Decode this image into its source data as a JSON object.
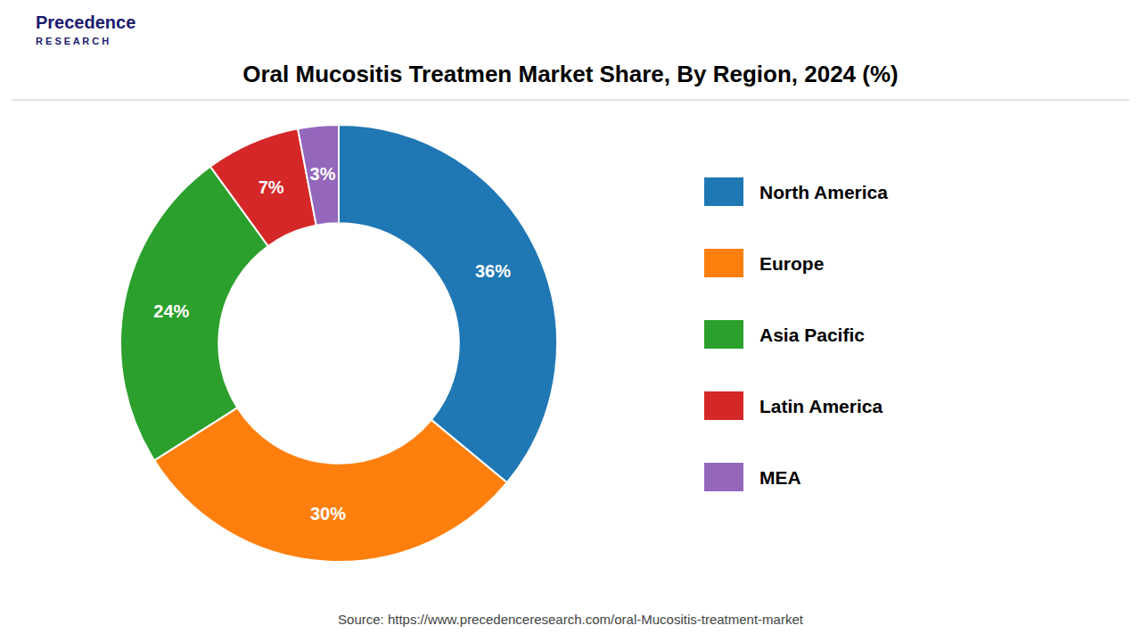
{
  "chart_data": {
    "type": "pie",
    "title": "Oral Mucositis Treatmen Market Share, By Region, 2024 (%)",
    "categories": [
      "North America",
      "Europe",
      "Asia Pacific",
      "Latin America",
      "MEA"
    ],
    "values": [
      36,
      30,
      24,
      7,
      3
    ],
    "value_labels": [
      "36%",
      "30%",
      "24%",
      "7%",
      "3%"
    ],
    "data_labels": true,
    "legend": "right",
    "annotations": [
      "Source: https://www.precedenceresearch.com/oral-Mucositis-treatment-market",
      "Precedence",
      "R E S E A R C H"
    ]
  }
}
